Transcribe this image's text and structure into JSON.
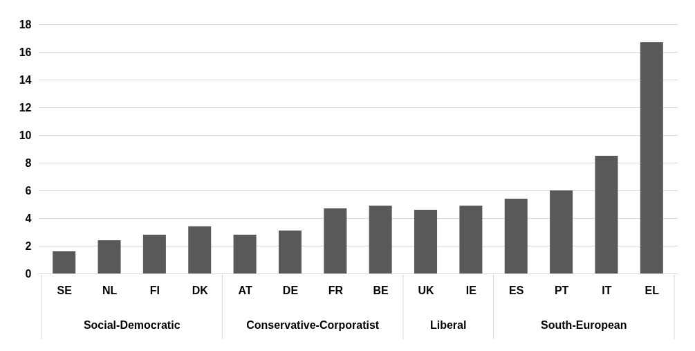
{
  "chart_data": {
    "type": "bar",
    "categories": [
      "SE",
      "NL",
      "FI",
      "DK",
      "AT",
      "DE",
      "FR",
      "BE",
      "UK",
      "IE",
      "ES",
      "PT",
      "IT",
      "EL"
    ],
    "values": [
      1.6,
      2.4,
      2.8,
      3.4,
      2.8,
      3.1,
      4.7,
      4.9,
      4.6,
      4.9,
      5.4,
      6.0,
      8.5,
      16.7
    ],
    "color": "#595959",
    "ylim": [
      0,
      18
    ],
    "yticks": [
      0,
      2,
      4,
      6,
      8,
      10,
      12,
      14,
      16,
      18
    ],
    "grid": "y",
    "annotations": [
      "Social-Democratic",
      "Conservative-Corporatist",
      "Liberal",
      "South-European"
    ]
  }
}
